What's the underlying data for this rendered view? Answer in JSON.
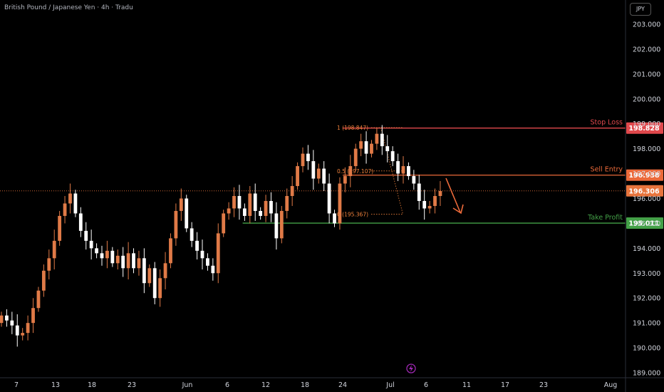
{
  "header": {
    "title": "British Pound / Japanese Yen · 4h · Tradu"
  },
  "currency_button": {
    "label": "JPY"
  },
  "colors": {
    "up": "#e07a47",
    "down": "#ffffff",
    "stop": "#e0484c",
    "entry": "#ec6a3a",
    "profit": "#43a047",
    "current": "#e8743c",
    "fib": "#f0823c",
    "axis_text": "#d1d4dc"
  },
  "chart_data": {
    "type": "candlestick",
    "title": "British Pound / Japanese Yen · 4h · Tradu",
    "ylim": [
      188.8,
      203.4
    ],
    "y_ticks": [
      "189.000",
      "190.000",
      "191.000",
      "192.000",
      "193.000",
      "194.000",
      "195.000",
      "196.000",
      "197.000",
      "198.000",
      "199.000",
      "200.000",
      "201.000",
      "202.000",
      "203.000"
    ],
    "x_ticks": [
      "7",
      "13",
      "18",
      "23",
      "Jun",
      "6",
      "12",
      "18",
      "24",
      "Jul",
      "6",
      "11",
      "17",
      "23",
      "Aug"
    ],
    "levels": [
      {
        "name": "Stop Loss",
        "value": 198.828,
        "label": "198.828",
        "color_key": "stop",
        "start_tick": 8
      },
      {
        "name": "Sell Entry",
        "value": 196.938,
        "label": "196.938",
        "color_key": "entry",
        "start_tick": 8
      },
      {
        "name": "Take Profit",
        "value": 195.011,
        "label": "195.011",
        "color_key": "profit",
        "start_tick": 5.4
      }
    ],
    "current_price": {
      "value": 196.306,
      "label": "196.306"
    },
    "fib": [
      {
        "text": "1 (198.847)",
        "value": 198.847
      },
      {
        "text": "0.5 (197.107)",
        "value": 197.107
      },
      {
        "text": "0 (195.367)",
        "value": 195.367
      }
    ],
    "series": [
      {
        "name": "",
        "closes": [
          191.3,
          191.1,
          190.9,
          190.5,
          190.6,
          191.0,
          191.6,
          192.3,
          193.1,
          193.6,
          194.3,
          195.3,
          195.8,
          196.2,
          195.4,
          194.7,
          194.3,
          194.0,
          193.8,
          193.6,
          193.9,
          193.4,
          193.7,
          193.2,
          193.8,
          193.2,
          193.6,
          192.6,
          193.2,
          192.0,
          192.8,
          193.4,
          194.4,
          195.5,
          196.0,
          194.8,
          194.3,
          193.9,
          193.6,
          193.3,
          193.0,
          194.6,
          195.4,
          195.6,
          196.1,
          195.6,
          195.3,
          196.2,
          195.5,
          195.3,
          195.9,
          195.4,
          194.4,
          195.5,
          196.1,
          196.5,
          197.3,
          197.8,
          197.5,
          196.8,
          197.2,
          196.6,
          195.4,
          195.0,
          196.6,
          196.9,
          197.3,
          198.0,
          198.3,
          197.8,
          198.2,
          198.6,
          198.1,
          197.9,
          197.5,
          197.0,
          197.3,
          196.9,
          196.6,
          195.9,
          195.6,
          195.7,
          196.1,
          196.3
        ],
        "last_x_tick": 10.35
      }
    ]
  }
}
